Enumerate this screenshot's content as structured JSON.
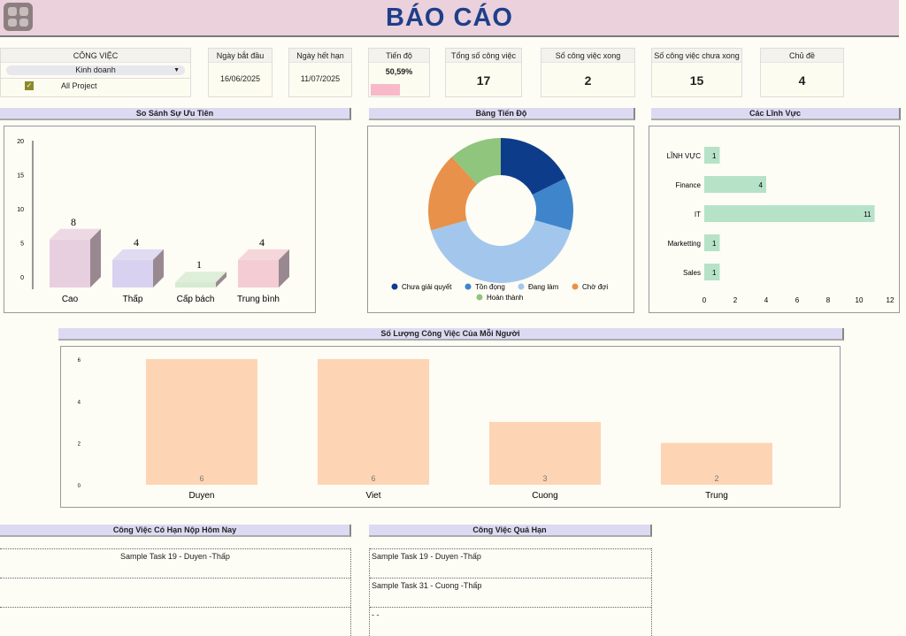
{
  "header": {
    "title": "BÁO CÁO",
    "menu_icon": "grid-icon"
  },
  "filter": {
    "label": "CÔNG VIỆC",
    "selected": "Kinh doanh",
    "checkbox_label": "All Project",
    "checked": true
  },
  "kpis": {
    "start": {
      "label": "Ngày bắt đầu",
      "value": "16/06/2025"
    },
    "end": {
      "label": "Ngày hết hạn",
      "value": "11/07/2025"
    },
    "progress": {
      "label": "Tiến độ",
      "value": "50,59%",
      "fraction": 0.5059
    },
    "total": {
      "label": "Tổng số công việc",
      "value": "17"
    },
    "done": {
      "label": "Số công việc xong",
      "value": "2"
    },
    "notdone": {
      "label": "Số công việc chưa xong",
      "value": "15"
    },
    "topics": {
      "label": "Chủ đề",
      "value": "4"
    }
  },
  "sections": {
    "priority": "So Sánh Sự Ưu Tiên",
    "progress": "Bảng Tiến Độ",
    "fields": "Các Lĩnh Vực",
    "people": "Số Lượng Công Việc Của Mỗi Người",
    "today": "Công Việc Có Hạn Nộp Hôm Nay",
    "overdue": "Công Việc Quá Hạn"
  },
  "chart_data": [
    {
      "type": "bar",
      "title": "So Sánh Sự Ưu Tiên",
      "categories": [
        "Cao",
        "Thấp",
        "Cấp bách",
        "Trung bình"
      ],
      "values": [
        8,
        4,
        1,
        4
      ],
      "yticks": [
        "0",
        "5",
        "10",
        "15",
        "20"
      ],
      "ylim": [
        0,
        20
      ],
      "colors": [
        "#e8cfe0",
        "#d8d2f0",
        "#d6ead2",
        "#f3cdd3"
      ]
    },
    {
      "type": "pie",
      "title": "Bảng Tiến Độ",
      "labels": [
        "Chưa giải quyết",
        "Tồn đọng",
        "Đang làm",
        "Chờ đợi",
        "Hoàn thành"
      ],
      "values": [
        3,
        2,
        7,
        3,
        2
      ],
      "colors": [
        "#0d3d8a",
        "#3f85cc",
        "#a3c7ec",
        "#e8914a",
        "#8fc57c"
      ]
    },
    {
      "type": "bar",
      "orientation": "horizontal",
      "title": "Các Lĩnh Vực",
      "categories": [
        "LĨNH VỰC",
        "Finance",
        "IT",
        "Marketting",
        "Sales"
      ],
      "values": [
        1,
        4,
        11,
        1,
        1
      ],
      "xticks": [
        "0",
        "2",
        "4",
        "6",
        "8",
        "10",
        "12"
      ],
      "xlim": [
        0,
        12
      ]
    },
    {
      "type": "bar",
      "title": "Số Lượng Công Việc Của Mỗi Người",
      "categories": [
        "Duyen",
        "Viet",
        "Cuong",
        "Trung"
      ],
      "values": [
        6,
        6,
        3,
        2
      ],
      "yticks": [
        "0",
        "2",
        "4",
        "6"
      ],
      "ylim": [
        0,
        6
      ]
    }
  ],
  "today_tasks": [
    "Sample Task 19 - Duyen -Thấp",
    "",
    ""
  ],
  "overdue_tasks": [
    "Sample Task 19 - Duyen -Thấp",
    "Sample Task 31 - Cuong -Thấp",
    "- -"
  ]
}
